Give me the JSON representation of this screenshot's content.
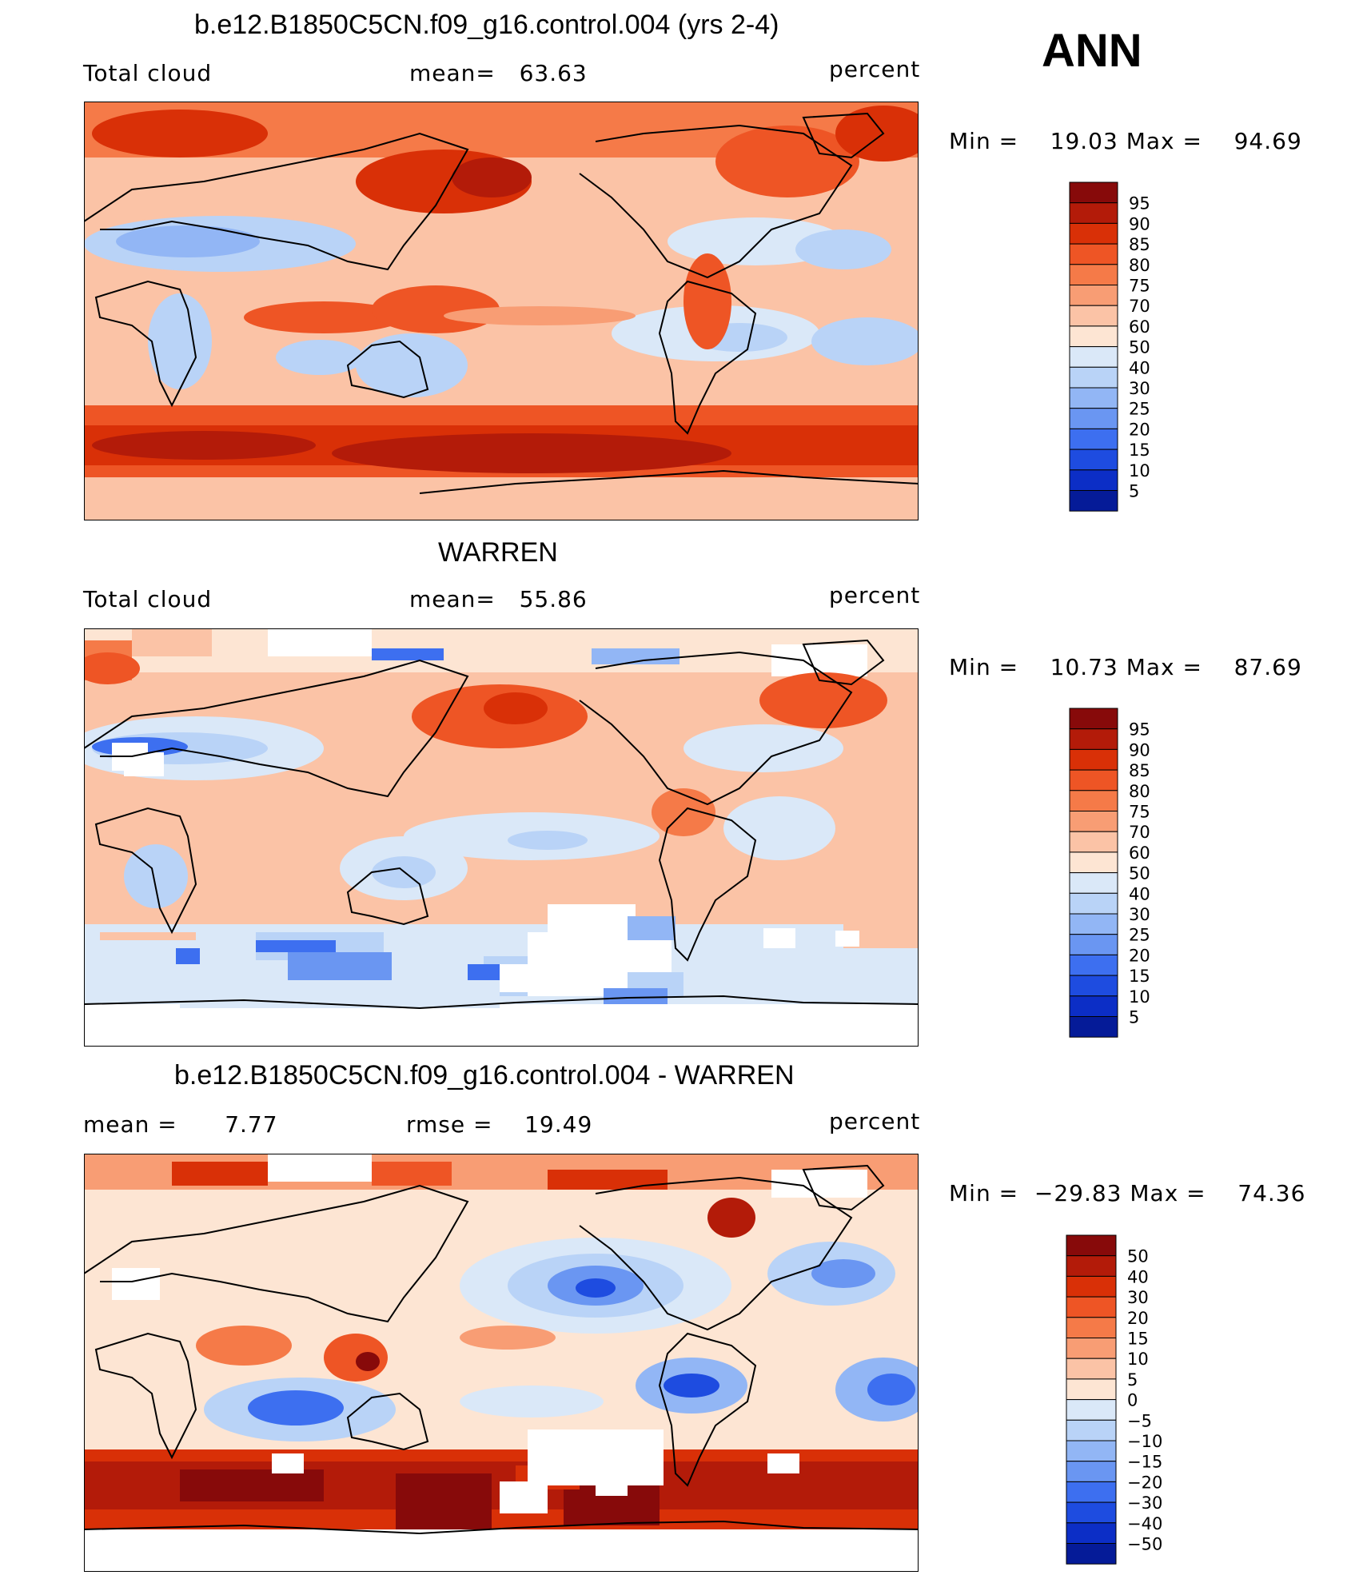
{
  "season": "ANN",
  "panels": [
    {
      "title": "b.e12.B1850C5CN.f09_g16.control.004 (yrs 2-4)",
      "left_label": "Total cloud",
      "stat1_label": "mean=",
      "stat1_value": "63.63",
      "stat2_label": "",
      "stat2_value": "",
      "units": "percent",
      "min_label": "Min =",
      "min_value": "19.03",
      "max_label": "Max =",
      "max_value": "94.69",
      "levels": [
        "95",
        "90",
        "85",
        "80",
        "75",
        "70",
        "60",
        "50",
        "40",
        "30",
        "25",
        "20",
        "15",
        "10",
        "5"
      ]
    },
    {
      "title": "WARREN",
      "left_label": "Total cloud",
      "stat1_label": "mean=",
      "stat1_value": "55.86",
      "stat2_label": "",
      "stat2_value": "",
      "units": "percent",
      "min_label": "Min =",
      "min_value": "10.73",
      "max_label": "Max =",
      "max_value": "87.69",
      "levels": [
        "95",
        "90",
        "85",
        "80",
        "75",
        "70",
        "60",
        "50",
        "40",
        "30",
        "25",
        "20",
        "15",
        "10",
        "5"
      ]
    },
    {
      "title": "b.e12.B1850C5CN.f09_g16.control.004 - WARREN",
      "left_label": "mean =",
      "stat1_label": "",
      "stat1_value": "7.77",
      "stat2_label": "rmse =",
      "stat2_value": "19.49",
      "units": "percent",
      "min_label": "Min =",
      "min_value": "−29.83",
      "max_label": "Max =",
      "max_value": "74.36",
      "levels": [
        "50",
        "40",
        "30",
        "20",
        "15",
        "10",
        "5",
        "0",
        "−5",
        "−10",
        "−15",
        "−20",
        "−30",
        "−40",
        "−50"
      ]
    }
  ],
  "colors": [
    "#870a0a",
    "#b31b09",
    "#d93007",
    "#ee5525",
    "#f57a48",
    "#f89d74",
    "#fbc3a6",
    "#fde5d3",
    "#dae8f8",
    "#b9d3f7",
    "#92b6f5",
    "#6a96f2",
    "#3d6ff0",
    "#1e4ce0",
    "#0c2ec6",
    "#051b98"
  ],
  "chart_data": [
    {
      "type": "heatmap",
      "title": "b.e12.B1850C5CN.f09_g16.control.004 (yrs 2-4)",
      "variable": "Total cloud",
      "units": "percent",
      "mean": 63.63,
      "min": 19.03,
      "max": 94.69,
      "contour_levels": [
        5,
        10,
        15,
        20,
        25,
        30,
        40,
        50,
        60,
        70,
        75,
        80,
        85,
        90,
        95
      ]
    },
    {
      "type": "heatmap",
      "title": "WARREN",
      "variable": "Total cloud",
      "units": "percent",
      "mean": 55.86,
      "min": 10.73,
      "max": 87.69,
      "contour_levels": [
        5,
        10,
        15,
        20,
        25,
        30,
        40,
        50,
        60,
        70,
        75,
        80,
        85,
        90,
        95
      ]
    },
    {
      "type": "heatmap",
      "title": "b.e12.B1850C5CN.f09_g16.control.004 - WARREN",
      "units": "percent",
      "mean": 7.77,
      "rmse": 19.49,
      "min": -29.83,
      "max": 74.36,
      "contour_levels": [
        -50,
        -40,
        -30,
        -20,
        -15,
        -10,
        -5,
        0,
        5,
        10,
        15,
        20,
        30,
        40,
        50
      ]
    }
  ]
}
